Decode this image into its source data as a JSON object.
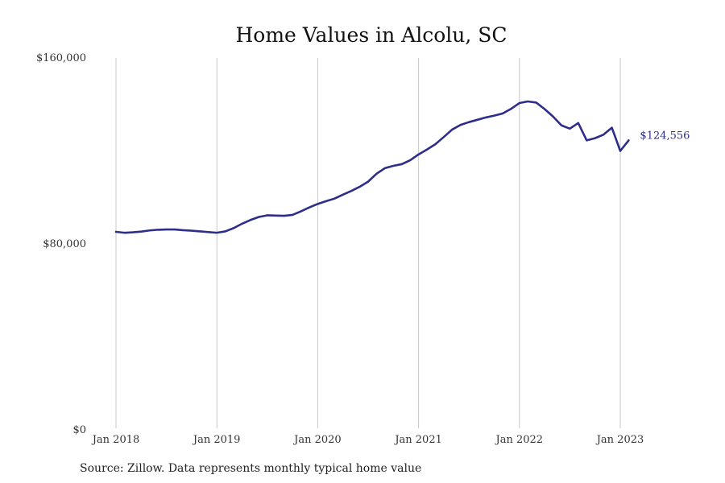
{
  "chart_data": {
    "type": "line",
    "title": "Home Values in Alcolu, SC",
    "xlabel": "",
    "ylabel": "",
    "ylim": [
      0,
      160000
    ],
    "y_ticks": [
      {
        "value": 0,
        "label": "$0"
      },
      {
        "value": 80000,
        "label": "$80,000"
      },
      {
        "value": 160000,
        "label": "$160,000"
      }
    ],
    "x_ticks": [
      {
        "date": "2018-01",
        "label": "Jan 2018"
      },
      {
        "date": "2019-01",
        "label": "Jan 2019"
      },
      {
        "date": "2020-01",
        "label": "Jan 2020"
      },
      {
        "date": "2021-01",
        "label": "Jan 2021"
      },
      {
        "date": "2022-01",
        "label": "Jan 2022"
      },
      {
        "date": "2023-01",
        "label": "Jan 2023"
      }
    ],
    "grid": "vertical",
    "line_color": "#2e2d8a",
    "series": [
      {
        "x": [
          "2018-01",
          "2018-02",
          "2018-03",
          "2018-04",
          "2018-05",
          "2018-06",
          "2018-07",
          "2018-08",
          "2018-09",
          "2018-10",
          "2018-11",
          "2018-12",
          "2019-01",
          "2019-02",
          "2019-03",
          "2019-04",
          "2019-05",
          "2019-06",
          "2019-07",
          "2019-08",
          "2019-09",
          "2019-10",
          "2019-11",
          "2019-12",
          "2020-01",
          "2020-02",
          "2020-03",
          "2020-04",
          "2020-05",
          "2020-06",
          "2020-07",
          "2020-08",
          "2020-09",
          "2020-10",
          "2020-11",
          "2020-12",
          "2021-01",
          "2021-02",
          "2021-03",
          "2021-04",
          "2021-05",
          "2021-06",
          "2021-07",
          "2021-08",
          "2021-09",
          "2021-10",
          "2021-11",
          "2021-12",
          "2022-01",
          "2022-02",
          "2022-03",
          "2022-04",
          "2022-05",
          "2022-06",
          "2022-07",
          "2022-08",
          "2022-09",
          "2022-10",
          "2022-11",
          "2022-12",
          "2023-01",
          "2023-02"
        ],
        "values": [
          85200,
          84800,
          85000,
          85300,
          85800,
          86100,
          86200,
          86200,
          85900,
          85700,
          85400,
          85100,
          84800,
          85400,
          86800,
          88700,
          90300,
          91600,
          92300,
          92200,
          92100,
          92500,
          94000,
          95700,
          97200,
          98400,
          99500,
          101200,
          102800,
          104600,
          106800,
          110200,
          112600,
          113600,
          114300,
          116000,
          118500,
          120600,
          122900,
          126000,
          129200,
          131200,
          132400,
          133400,
          134400,
          135200,
          136100,
          138100,
          140600,
          141300,
          140800,
          138000,
          134800,
          131000,
          129600,
          132000,
          124556,
          125500,
          127000,
          130000,
          120000,
          124556
        ],
        "line_color": "#2e2d8a"
      }
    ],
    "end_label": "$124,556",
    "source": "Source: Zillow. Data represents monthly typical home value"
  }
}
